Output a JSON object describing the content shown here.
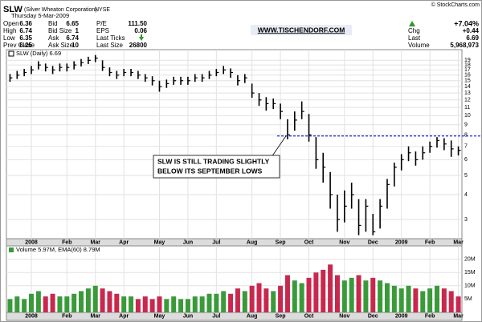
{
  "header": {
    "symbol": "SLW",
    "company": "(Silver Wheaton Corporation)",
    "exchange": "NYSE",
    "date": "Thursday  5-Mar-2009",
    "copyright": "© StockCharts.com",
    "website": "WWW.TISCHENDORF.COM",
    "quote": [
      [
        {
          "label": "Open",
          "value": "6.36"
        },
        {
          "label": "High",
          "value": "6.74"
        },
        {
          "label": "Low",
          "value": "6.35"
        },
        {
          "label": "Prev Close",
          "value": "6.25"
        }
      ],
      [
        {
          "label": "Bid",
          "value": "6.65"
        },
        {
          "label": "Bid Size",
          "value": "1"
        },
        {
          "label": "Ask",
          "value": "6.74"
        },
        {
          "label": "Ask Size",
          "value": "10"
        }
      ],
      [
        {
          "label": "P/E",
          "value": "111.50"
        },
        {
          "label": "EPS",
          "value": "0.06"
        },
        {
          "label": "Last Ticks"
        },
        {
          "label": "Last Size",
          "value": "26800"
        }
      ]
    ],
    "change_pct": "+7.04%",
    "summary": [
      {
        "label": "Chg",
        "value": "+0.44"
      },
      {
        "label": "Last",
        "value": "6.69"
      },
      {
        "label": "Volume",
        "value": "5,968,973"
      }
    ]
  },
  "chart_data": [
    {
      "type": "ohlc",
      "title": "SLW (Daily) 6.69",
      "log_scale": true,
      "grid": true,
      "color": "#000000",
      "categories": [
        null,
        null,
        null,
        "2008",
        null,
        null,
        null,
        null,
        "Feb",
        null,
        null,
        null,
        "Mar",
        null,
        null,
        null,
        "Apr",
        null,
        null,
        null,
        null,
        "May",
        null,
        null,
        null,
        "Jun",
        null,
        null,
        null,
        "Jul",
        null,
        null,
        null,
        null,
        "Aug",
        null,
        null,
        null,
        "Sep",
        null,
        null,
        null,
        "Oct",
        null,
        null,
        null,
        null,
        "Nov",
        null,
        null,
        null,
        "Dec",
        null,
        null,
        null,
        "2009",
        null,
        null,
        null,
        "Feb",
        null,
        null,
        null,
        "Mar"
      ],
      "close": [
        15.5,
        16,
        16.5,
        17,
        18,
        17.5,
        17,
        17.5,
        17.5,
        18,
        18.5,
        19,
        19.5,
        17.5,
        16.5,
        16,
        16.5,
        16.5,
        16,
        15.5,
        15,
        14,
        14.5,
        15,
        15,
        15,
        15.5,
        15.5,
        16,
        16.5,
        17,
        16.5,
        15,
        15.5,
        13,
        12,
        11.5,
        11.5,
        10.5,
        8,
        9.5,
        10.5,
        8,
        6,
        5.5,
        4,
        3,
        3.5,
        4,
        2.8,
        3.5,
        2.6,
        3.5,
        4.5,
        5.5,
        6,
        6.5,
        6,
        6.5,
        7,
        7.5,
        7.2,
        6.8,
        6.69
      ],
      "high": [
        16.2,
        16.8,
        17.2,
        17.8,
        18.8,
        18.3,
        17.8,
        18.3,
        18.3,
        18.8,
        19.3,
        19.8,
        20.2,
        19,
        17.5,
        16.8,
        17.2,
        17.2,
        16.8,
        16.2,
        15.8,
        15,
        15.2,
        15.7,
        15.7,
        15.7,
        16.2,
        16.2,
        16.8,
        17.2,
        17.8,
        17.3,
        16,
        16.2,
        14.5,
        13,
        12.4,
        12.2,
        11.5,
        9.6,
        10.5,
        11.8,
        10.2,
        7.8,
        6.5,
        5.2,
        4,
        4.2,
        4.6,
        3.8,
        3.8,
        3.2,
        3.8,
        4.8,
        5.8,
        6.4,
        7,
        6.6,
        7,
        7.4,
        7.8,
        7.7,
        7.5,
        7
      ],
      "low": [
        14.8,
        15.3,
        15.8,
        16.2,
        17.1,
        16.7,
        16.2,
        16.7,
        16.7,
        17.1,
        17.7,
        18.2,
        18.6,
        16.8,
        15.8,
        15.3,
        15.8,
        15.8,
        15.3,
        14.8,
        14.2,
        13.2,
        13.8,
        14.3,
        14.3,
        14.3,
        14.8,
        14.8,
        15.3,
        15.8,
        16.2,
        15.5,
        14.2,
        14.6,
        12.3,
        11.2,
        10.6,
        10.8,
        9.6,
        7.6,
        8.4,
        9.6,
        7.4,
        5.4,
        4.6,
        3.4,
        2.6,
        2.9,
        3.4,
        2.5,
        2.6,
        2.5,
        2.7,
        3.4,
        4.4,
        5.3,
        5.9,
        5.6,
        6,
        6.5,
        6.9,
        6.7,
        6.2,
        6.3
      ],
      "ylim": [
        2.4,
        21.5
      ],
      "yticks": [
        3,
        4,
        5,
        6,
        7,
        8,
        9,
        10,
        11,
        12,
        13,
        14,
        15,
        16,
        17,
        18,
        19
      ],
      "annotation": {
        "text": [
          "SLW IS STILL TRADING SLIGHTLY",
          "BELOW ITS SEPTEMBER LOWS"
        ],
        "level": 7.9
      }
    },
    {
      "type": "bar",
      "title": "Volume 5.97M, EMA(60) 8.79M",
      "grid": true,
      "up_color": "#3a9a3a",
      "down_color": "#c8284e",
      "categories": [
        null,
        null,
        null,
        "2008",
        null,
        null,
        null,
        null,
        "Feb",
        null,
        null,
        null,
        "Mar",
        null,
        null,
        null,
        "Apr",
        null,
        null,
        null,
        null,
        "May",
        null,
        null,
        null,
        "Jun",
        null,
        null,
        null,
        "Jul",
        null,
        null,
        null,
        null,
        "Aug",
        null,
        null,
        null,
        "Sep",
        null,
        null,
        null,
        "Oct",
        null,
        null,
        null,
        null,
        "Nov",
        null,
        null,
        null,
        "Dec",
        null,
        null,
        null,
        "2009",
        null,
        null,
        null,
        "Feb",
        null,
        null,
        null,
        "Mar"
      ],
      "values": [
        5,
        6,
        5,
        7,
        8,
        6,
        7,
        6,
        6,
        7,
        8,
        9,
        10,
        9,
        8,
        7,
        6,
        6,
        5,
        6,
        5,
        6,
        5,
        6,
        5,
        5,
        6,
        6,
        7,
        7,
        8,
        7,
        9,
        8,
        10,
        11,
        9,
        8,
        10,
        14,
        12,
        11,
        13,
        15,
        16,
        18,
        14,
        12,
        13,
        14,
        12,
        13,
        12,
        11,
        10,
        9,
        10,
        9,
        8,
        9,
        10,
        9,
        8,
        6
      ],
      "ylim": [
        0,
        25
      ],
      "yticks": [
        {
          "value": 5,
          "label": "5M"
        },
        {
          "value": 10,
          "label": "10M"
        },
        {
          "value": 15,
          "label": "15M"
        },
        {
          "value": 20,
          "label": "20M"
        }
      ]
    }
  ]
}
